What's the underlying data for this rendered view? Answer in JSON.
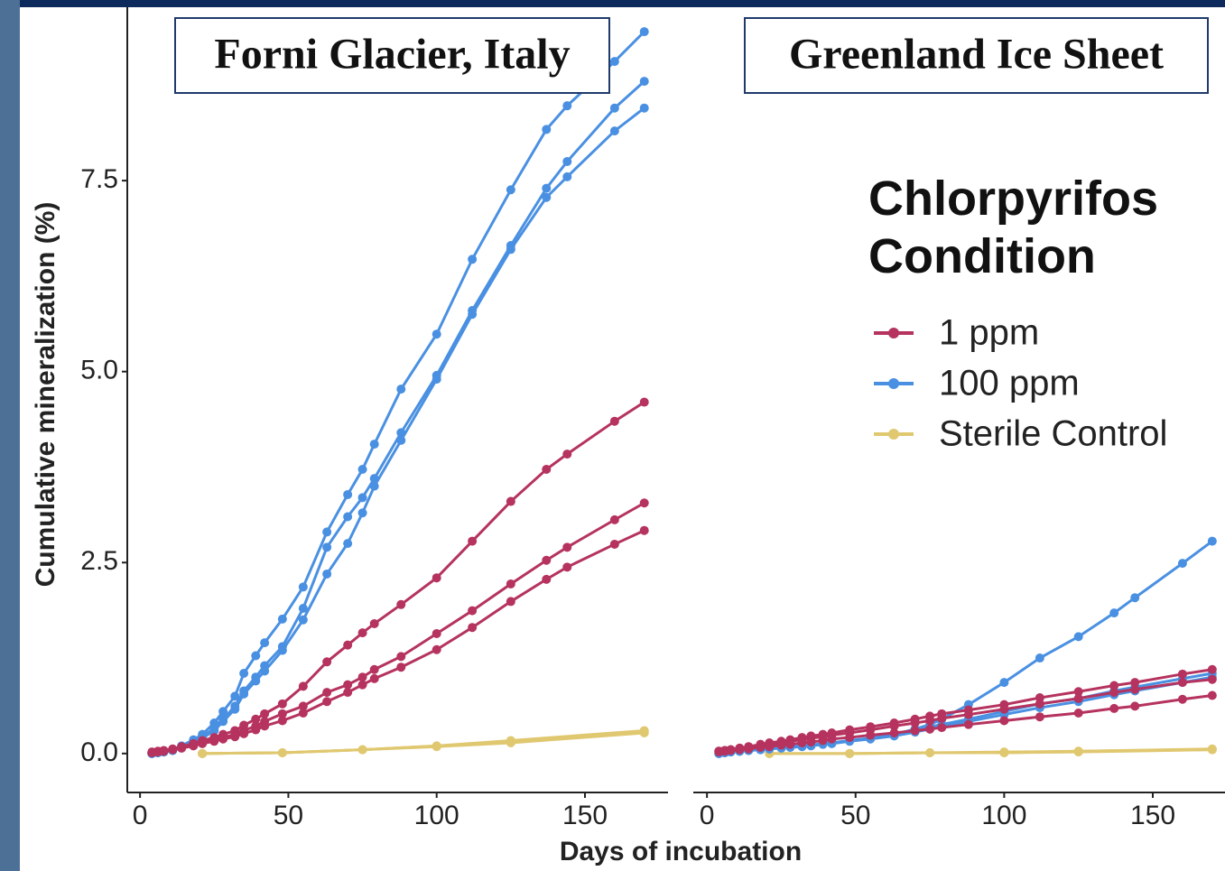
{
  "ylabel": "Cumulative mineralization (%)",
  "xlabel": "Days of incubation",
  "legend_title": "Chlorpyrifos Condition",
  "chart_data": [
    {
      "type": "line",
      "title": "Forni Glacier, Italy",
      "xlim": [
        -4.3,
        178.0
      ],
      "ylim": [
        -0.51,
        9.77
      ],
      "xticks": [
        0,
        50,
        100,
        150
      ],
      "yticks": [
        {
          "value": 0,
          "label": "0.0"
        },
        {
          "value": 2.5,
          "label": "2.5"
        },
        {
          "value": 5,
          "label": "5.0"
        },
        {
          "value": 7.5,
          "label": "7.5"
        }
      ],
      "series": [
        {
          "name": "1 ppm",
          "color": "#b5335e",
          "x": [
            4,
            6,
            8,
            11,
            14,
            18,
            21,
            25,
            28,
            32,
            35,
            39,
            42,
            48,
            55,
            63,
            70,
            75,
            79,
            88,
            100,
            112,
            125,
            137,
            144,
            160,
            170
          ],
          "replicates": [
            [
              0.02,
              0.03,
              0.04,
              0.06,
              0.09,
              0.13,
              0.17,
              0.21,
              0.25,
              0.3,
              0.37,
              0.45,
              0.52,
              0.65,
              0.88,
              1.2,
              1.42,
              1.58,
              1.7,
              1.95,
              2.3,
              2.78,
              3.3,
              3.72,
              3.92,
              4.35,
              4.6
            ],
            [
              0.01,
              0.02,
              0.03,
              0.05,
              0.08,
              0.11,
              0.14,
              0.18,
              0.21,
              0.25,
              0.3,
              0.36,
              0.42,
              0.52,
              0.62,
              0.8,
              0.9,
              1.0,
              1.1,
              1.27,
              1.57,
              1.87,
              2.22,
              2.53,
              2.7,
              3.06,
              3.28
            ],
            [
              0.01,
              0.02,
              0.03,
              0.05,
              0.07,
              0.1,
              0.13,
              0.16,
              0.19,
              0.22,
              0.26,
              0.31,
              0.36,
              0.43,
              0.53,
              0.68,
              0.8,
              0.9,
              0.98,
              1.13,
              1.36,
              1.65,
              1.99,
              2.28,
              2.44,
              2.74,
              2.92
            ]
          ]
        },
        {
          "name": "100 ppm",
          "color": "#4a90e2",
          "x": [
            4,
            6,
            8,
            11,
            14,
            18,
            21,
            25,
            28,
            32,
            35,
            39,
            42,
            48,
            55,
            63,
            70,
            75,
            79,
            88,
            100,
            112,
            125,
            137,
            144,
            160,
            170
          ],
          "replicates": [
            [
              0,
              0.01,
              0.02,
              0.05,
              0.1,
              0.18,
              0.25,
              0.4,
              0.55,
              0.75,
              1.05,
              1.28,
              1.45,
              1.76,
              2.18,
              2.9,
              3.39,
              3.72,
              4.05,
              4.77,
              5.49,
              6.47,
              7.38,
              8.17,
              8.48,
              9.06,
              9.45
            ],
            [
              0,
              0.01,
              0.02,
              0.04,
              0.09,
              0.15,
              0.22,
              0.33,
              0.45,
              0.62,
              0.82,
              1.0,
              1.15,
              1.4,
              1.9,
              2.7,
              3.1,
              3.35,
              3.6,
              4.2,
              4.95,
              5.8,
              6.65,
              7.4,
              7.75,
              8.45,
              8.8
            ],
            [
              0,
              0.01,
              0.02,
              0.04,
              0.08,
              0.14,
              0.2,
              0.3,
              0.42,
              0.58,
              0.78,
              0.95,
              1.08,
              1.35,
              1.75,
              2.35,
              2.75,
              3.15,
              3.5,
              4.1,
              4.9,
              5.75,
              6.6,
              7.28,
              7.55,
              8.15,
              8.45
            ]
          ]
        },
        {
          "name": "Sterile Control",
          "color": "#e0c870",
          "x": [
            21,
            48,
            75,
            100,
            125,
            170
          ],
          "replicates": [
            [
              0,
              0.01,
              0.05,
              0.1,
              0.17,
              0.3
            ],
            [
              0,
              0.01,
              0.05,
              0.09,
              0.14,
              0.27
            ],
            [
              0,
              0.01,
              0.05,
              0.1,
              0.15,
              0.28
            ]
          ]
        }
      ]
    },
    {
      "type": "line",
      "title": "Greenland Ice Sheet",
      "xlim": [
        -4.6,
        174.3
      ],
      "ylim": [
        -0.51,
        9.77
      ],
      "xticks": [
        0,
        50,
        100,
        150
      ],
      "series": [
        {
          "color": "#b5335e",
          "x": [
            4,
            6,
            8,
            11,
            14,
            18,
            21,
            25,
            28,
            32,
            35,
            39,
            42,
            48,
            55,
            63,
            70,
            75,
            79,
            88,
            100,
            112,
            125,
            137,
            144,
            160,
            170
          ],
          "replicates": [
            [
              0.03,
              0.04,
              0.05,
              0.07,
              0.09,
              0.12,
              0.14,
              0.16,
              0.18,
              0.21,
              0.23,
              0.25,
              0.27,
              0.31,
              0.35,
              0.4,
              0.45,
              0.49,
              0.52,
              0.57,
              0.64,
              0.73,
              0.81,
              0.89,
              0.93,
              1.04,
              1.1
            ],
            [
              0.03,
              0.04,
              0.05,
              0.07,
              0.08,
              0.1,
              0.12,
              0.14,
              0.16,
              0.18,
              0.2,
              0.22,
              0.24,
              0.27,
              0.31,
              0.36,
              0.4,
              0.43,
              0.46,
              0.51,
              0.58,
              0.65,
              0.72,
              0.8,
              0.84,
              0.93,
              0.97
            ],
            [
              0.02,
              0.03,
              0.04,
              0.05,
              0.06,
              0.08,
              0.09,
              0.11,
              0.12,
              0.14,
              0.15,
              0.17,
              0.19,
              0.21,
              0.24,
              0.27,
              0.3,
              0.32,
              0.34,
              0.38,
              0.43,
              0.48,
              0.53,
              0.59,
              0.62,
              0.71,
              0.76
            ]
          ]
        },
        {
          "color": "#4a90e2",
          "x": [
            4,
            6,
            8,
            11,
            14,
            18,
            21,
            25,
            28,
            32,
            35,
            39,
            42,
            48,
            55,
            63,
            70,
            75,
            79,
            88,
            100,
            112,
            125,
            137,
            144,
            160,
            170
          ],
          "replicates": [
            [
              0,
              0.01,
              0.02,
              0.03,
              0.04,
              0.05,
              0.06,
              0.08,
              0.09,
              0.1,
              0.11,
              0.13,
              0.14,
              0.17,
              0.2,
              0.25,
              0.32,
              0.38,
              0.45,
              0.64,
              0.93,
              1.25,
              1.53,
              1.84,
              2.04,
              2.49,
              2.78
            ],
            [
              0,
              0.01,
              0.02,
              0.03,
              0.04,
              0.05,
              0.06,
              0.08,
              0.09,
              0.1,
              0.11,
              0.13,
              0.14,
              0.17,
              0.2,
              0.25,
              0.3,
              0.35,
              0.38,
              0.45,
              0.55,
              0.65,
              0.72,
              0.82,
              0.87,
              0.98,
              1.05
            ],
            [
              0,
              0.01,
              0.02,
              0.03,
              0.04,
              0.05,
              0.06,
              0.07,
              0.08,
              0.09,
              0.1,
              0.12,
              0.13,
              0.16,
              0.19,
              0.23,
              0.28,
              0.32,
              0.35,
              0.42,
              0.51,
              0.6,
              0.68,
              0.77,
              0.82,
              0.93,
              1.0
            ]
          ]
        },
        {
          "color": "#e0c870",
          "x": [
            21,
            48,
            75,
            100,
            125,
            170
          ],
          "replicates": [
            [
              0,
              0,
              0.01,
              0.01,
              0.03,
              0.05
            ],
            [
              0,
              0,
              0.01,
              0.01,
              0.02,
              0.05
            ],
            [
              0,
              0,
              0.01,
              0.02,
              0.03,
              0.06
            ]
          ]
        }
      ]
    }
  ]
}
